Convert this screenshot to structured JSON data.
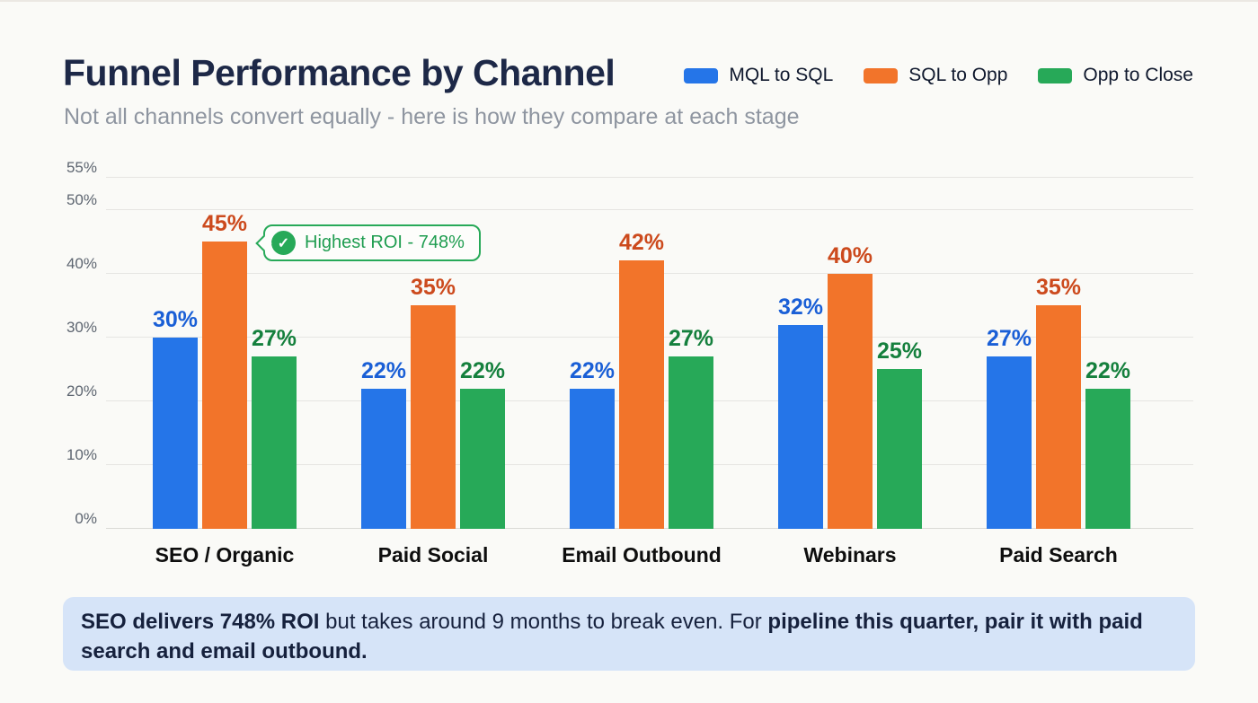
{
  "header": {
    "title": "Funnel Performance by Channel",
    "subtitle": "Not all channels convert equally - here is how they compare at each stage"
  },
  "legend": {
    "position": "top-right",
    "items": [
      {
        "label": "MQL to SQL",
        "color": "#2575e8"
      },
      {
        "label": "SQL to Opp",
        "color": "#f2742a"
      },
      {
        "label": "Opp to Close",
        "color": "#27a958"
      }
    ]
  },
  "chart_data": {
    "type": "bar",
    "title": "Funnel Performance by Channel",
    "xlabel": "",
    "ylabel": "",
    "ylim": [
      0,
      55
    ],
    "yticks": [
      0,
      10,
      20,
      30,
      40,
      50,
      55
    ],
    "ytick_suffix": "%",
    "grid": true,
    "legend_position": "top-right",
    "value_label_suffix": "%",
    "categories": [
      "SEO / Organic",
      "Paid Social",
      "Email Outbound",
      "Webinars",
      "Paid Search"
    ],
    "series": [
      {
        "name": "MQL to SQL",
        "color": "#2575e8",
        "label_color": "#1a5fd6",
        "values": [
          30,
          22,
          22,
          32,
          27
        ]
      },
      {
        "name": "SQL to Opp",
        "color": "#f2742a",
        "label_color": "#cc4a1d",
        "values": [
          45,
          35,
          42,
          40,
          35
        ]
      },
      {
        "name": "Opp to Close",
        "color": "#27a958",
        "label_color": "#15803d",
        "values": [
          27,
          22,
          27,
          25,
          22
        ]
      }
    ]
  },
  "annotation": {
    "icon": "check-circle-icon",
    "text": "Highest ROI - 748%",
    "color": "#27a958",
    "target": "SEO / Organic SQL to Opp bar"
  },
  "footer_note": {
    "segments": [
      {
        "text": "SEO delivers 748% ROI",
        "bold": true
      },
      {
        "text": " but takes around 9 months to break even. For ",
        "bold": false
      },
      {
        "text": "pipeline this quarter, pair it with paid search and email outbound.",
        "bold": true
      }
    ]
  }
}
